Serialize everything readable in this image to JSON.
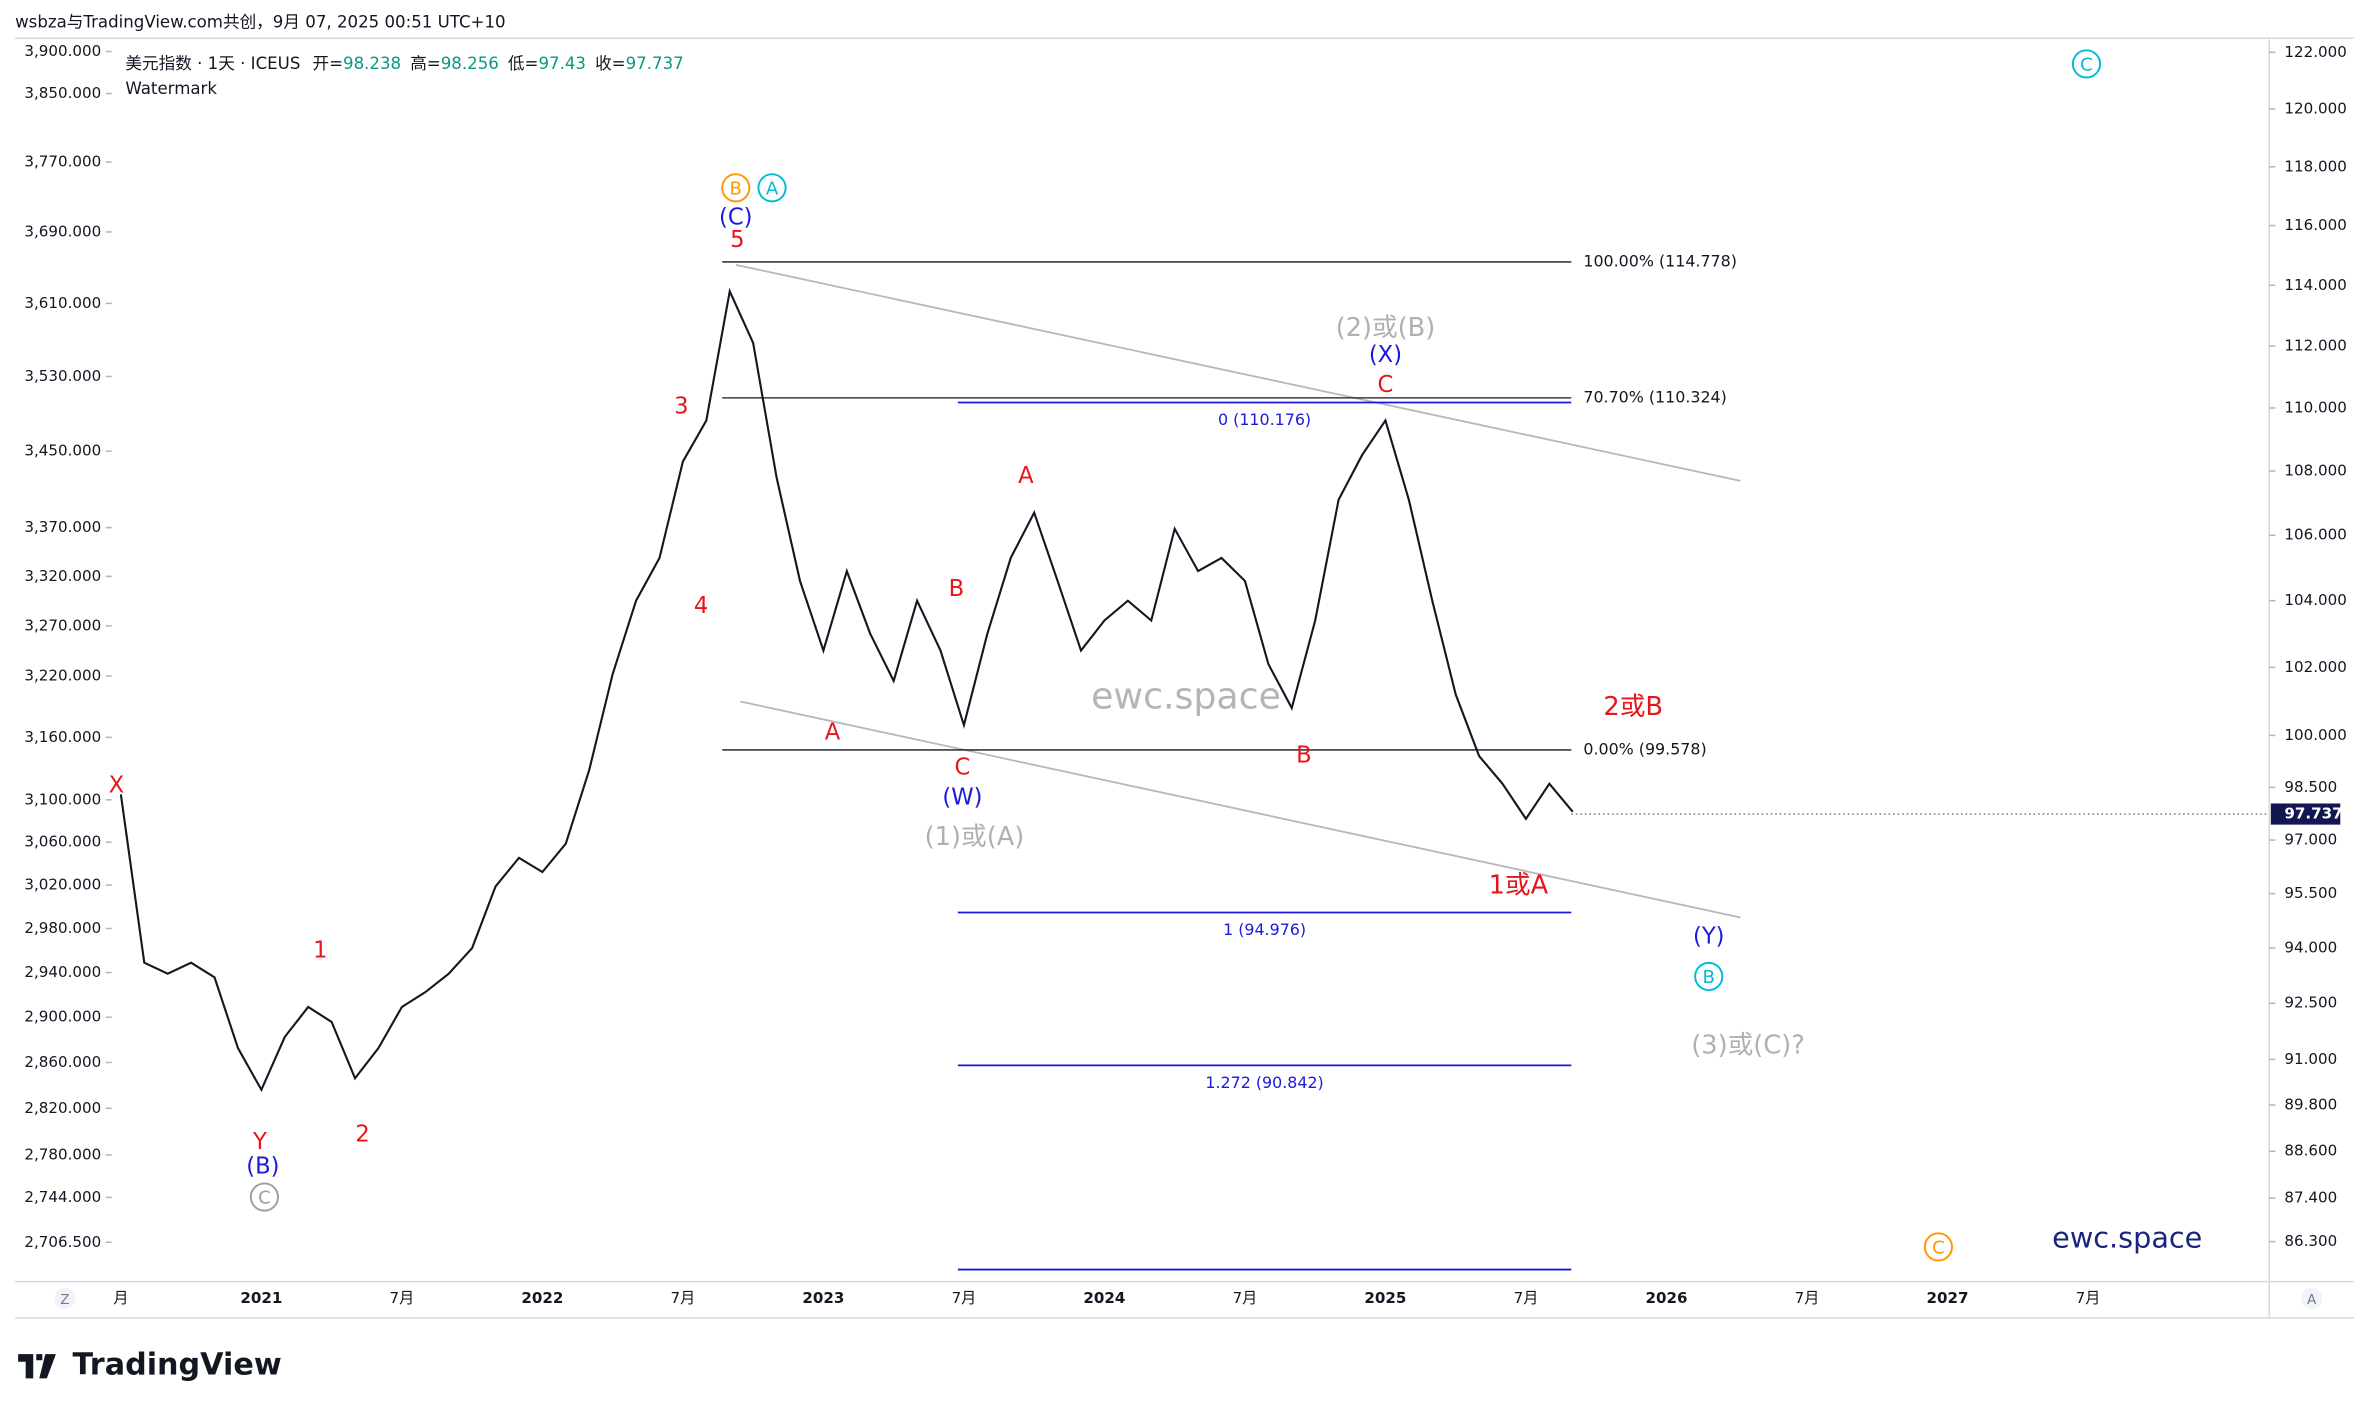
{
  "header": {
    "author_line": "wsbza与TradingView.com共创，9月 07, 2025 00:51 UTC+10"
  },
  "chart_data": {
    "type": "line",
    "symbol": "美元指数 · 1天 · ICEUS",
    "ohlc": [
      {
        "label": "开=",
        "value": 98.238
      },
      {
        "label": "高=",
        "value": 98.256
      },
      {
        "label": "低=",
        "value": 97.43
      },
      {
        "label": "收=",
        "value": 97.737
      }
    ],
    "watermark_legend": "Watermark",
    "watermark": "ewc.space",
    "brand": "ewc.space",
    "log_scale": true,
    "color": "#131722",
    "categories": [
      "月",
      null,
      null,
      null,
      null,
      null,
      "2021",
      null,
      null,
      null,
      null,
      null,
      "7月",
      null,
      null,
      null,
      null,
      null,
      "2022",
      null,
      null,
      null,
      null,
      null,
      "7月",
      null,
      null,
      null,
      null,
      null,
      "2023",
      null,
      null,
      null,
      null,
      null,
      "7月",
      null,
      null,
      null,
      null,
      null,
      "2024",
      null,
      null,
      null,
      null,
      null,
      "7月",
      null,
      null,
      null,
      null,
      null,
      "2025",
      null,
      null,
      null,
      null,
      null,
      "7月",
      null,
      null,
      null,
      null,
      null,
      "2026",
      null,
      null,
      null,
      null,
      null,
      "7月",
      null,
      null,
      null,
      null,
      null,
      "2027",
      null,
      null,
      null,
      null,
      null,
      "7月",
      null,
      null,
      null,
      null,
      null,
      null
    ],
    "values": [
      98.3,
      93.6,
      93.3,
      93.6,
      93.2,
      91.3,
      90.2,
      91.6,
      92.4,
      92.0,
      90.5,
      91.3,
      92.4,
      92.8,
      93.3,
      94.0,
      95.7,
      96.5,
      96.1,
      96.9,
      99.0,
      101.8,
      104.0,
      105.3,
      108.3,
      109.6,
      113.8,
      112.1,
      107.8,
      104.6,
      102.5,
      104.9,
      103.0,
      101.6,
      104.0,
      102.5,
      100.3,
      103.0,
      105.3,
      106.7,
      104.6,
      102.5,
      103.4,
      104.0,
      103.4,
      106.2,
      104.9,
      105.3,
      104.6,
      102.1,
      100.8,
      103.4,
      107.1,
      108.5,
      109.6,
      107.1,
      104.0,
      101.2,
      99.4,
      98.6,
      97.6,
      98.6,
      97.8,
      null,
      null,
      null,
      null,
      null,
      null,
      null,
      null,
      null,
      null,
      null,
      null,
      null,
      null,
      null,
      null,
      null,
      null,
      null,
      null,
      null,
      null,
      null,
      null,
      null,
      null,
      null,
      null
    ],
    "ylim": [
      85.3,
      122.5
    ],
    "yticks": [
      {
        "value": 122,
        "label": "122.000"
      },
      {
        "value": 120,
        "label": "120.000"
      },
      {
        "value": 118,
        "label": "118.000"
      },
      {
        "value": 116,
        "label": "116.000"
      },
      {
        "value": 114,
        "label": "114.000"
      },
      {
        "value": 112,
        "label": "112.000"
      },
      {
        "value": 110,
        "label": "110.000"
      },
      {
        "value": 108,
        "label": "108.000"
      },
      {
        "value": 106,
        "label": "106.000"
      },
      {
        "value": 104,
        "label": "104.000"
      },
      {
        "value": 102,
        "label": "102.000"
      },
      {
        "value": 100,
        "label": "100.000"
      },
      {
        "value": 98.5,
        "label": "98.500"
      },
      {
        "value": 97,
        "label": "97.000"
      },
      {
        "value": 95.5,
        "label": "95.500"
      },
      {
        "value": 94,
        "label": "94.000"
      },
      {
        "value": 92.5,
        "label": "92.500"
      },
      {
        "value": 91,
        "label": "91.000"
      },
      {
        "value": 89.8,
        "label": "89.800"
      },
      {
        "value": 88.6,
        "label": "88.600"
      },
      {
        "value": 87.4,
        "label": "87.400"
      },
      {
        "value": 86.3,
        "label": "86.300"
      }
    ],
    "y2lim": [
      2674,
      3916
    ],
    "y2ticks": [
      {
        "value": 3900,
        "label": "3,900.000"
      },
      {
        "value": 3850,
        "label": "3,850.000"
      },
      {
        "value": 3770,
        "label": "3,770.000"
      },
      {
        "value": 3690,
        "label": "3,690.000"
      },
      {
        "value": 3610,
        "label": "3,610.000"
      },
      {
        "value": 3530,
        "label": "3,530.000"
      },
      {
        "value": 3450,
        "label": "3,450.000"
      },
      {
        "value": 3370,
        "label": "3,370.000"
      },
      {
        "value": 3320,
        "label": "3,320.000"
      },
      {
        "value": 3270,
        "label": "3,270.000"
      },
      {
        "value": 3220,
        "label": "3,220.000"
      },
      {
        "value": 3160,
        "label": "3,160.000"
      },
      {
        "value": 3100,
        "label": "3,100.000"
      },
      {
        "value": 3060,
        "label": "3,060.000"
      },
      {
        "value": 3020,
        "label": "3,020.000"
      },
      {
        "value": 2980,
        "label": "2,980.000"
      },
      {
        "value": 2940,
        "label": "2,940.000"
      },
      {
        "value": 2900,
        "label": "2,900.000"
      },
      {
        "value": 2860,
        "label": "2,860.000"
      },
      {
        "value": 2820,
        "label": "2,820.000"
      },
      {
        "value": 2780,
        "label": "2,780.000"
      },
      {
        "value": 2744,
        "label": "2,744.000"
      },
      {
        "value": 2706.5,
        "label": "2,706.500"
      }
    ],
    "fib_levels": [
      {
        "value": 114.778,
        "label": "100.00% (114.778)",
        "color": "#131722"
      },
      {
        "value": 110.324,
        "label": "70.70% (110.324)",
        "color": "#131722"
      },
      {
        "value": 99.578,
        "label": "0.00% (99.578)",
        "color": "#131722"
      },
      {
        "value": 110.176,
        "label": "0 (110.176)",
        "color": "#1a1adb"
      },
      {
        "value": 94.976,
        "label": "1 (94.976)",
        "color": "#1a1adb"
      },
      {
        "value": 90.842,
        "label": "1.272 (90.842)",
        "color": "#1a1adb"
      }
    ],
    "annotations": [
      {
        "text": "B",
        "color": "#ff9800",
        "circled": true
      },
      {
        "text": "A",
        "color": "#00bcd4",
        "circled": true
      },
      {
        "text": "(C)",
        "color": "#1a1adb",
        "circled": false
      },
      {
        "text": "5",
        "color": "#e8141c",
        "circled": false
      },
      {
        "text": "3",
        "color": "#e8141c",
        "circled": false
      },
      {
        "text": "4",
        "color": "#e8141c",
        "circled": false
      },
      {
        "text": "X",
        "color": "#e8141c",
        "circled": false
      },
      {
        "text": "1",
        "color": "#e8141c",
        "circled": false
      },
      {
        "text": "2",
        "color": "#e8141c",
        "circled": false
      },
      {
        "text": "Y",
        "color": "#e8141c",
        "circled": false
      },
      {
        "text": "(B)",
        "color": "#1a1adb",
        "circled": false
      },
      {
        "text": "C",
        "color": "#9e9e9e",
        "circled": true
      },
      {
        "text": "A",
        "color": "#e8141c",
        "circled": false
      },
      {
        "text": "B",
        "color": "#e8141c",
        "circled": false
      },
      {
        "text": "C",
        "color": "#e8141c",
        "circled": false
      },
      {
        "text": "(W)",
        "color": "#1a1adb",
        "circled": false
      },
      {
        "text": "(1)或(A)",
        "color": "#b0b0b0",
        "circled": false
      },
      {
        "text": "A",
        "color": "#e8141c",
        "circled": false
      },
      {
        "text": "B",
        "color": "#e8141c",
        "circled": false
      },
      {
        "text": "(2)或(B)",
        "color": "#b0b0b0",
        "circled": false
      },
      {
        "text": "(X)",
        "color": "#1a1adb",
        "circled": false
      },
      {
        "text": "C",
        "color": "#e8141c",
        "circled": false
      },
      {
        "text": "2或B",
        "color": "#e8141c",
        "circled": false
      },
      {
        "text": "1或A",
        "color": "#e8141c",
        "circled": false
      },
      {
        "text": "(Y)",
        "color": "#1a1adb",
        "circled": false
      },
      {
        "text": "B",
        "color": "#00bcd4",
        "circled": true
      },
      {
        "text": "(3)或(C)?",
        "color": "#b0b0b0",
        "circled": false
      },
      {
        "text": "C",
        "color": "#00bcd4",
        "circled": true
      },
      {
        "text": "C",
        "color": "#ff9800",
        "circled": true
      }
    ]
  },
  "footer": {
    "logo": "TradingView",
    "scale_left": "Z",
    "scale_right": "A"
  }
}
